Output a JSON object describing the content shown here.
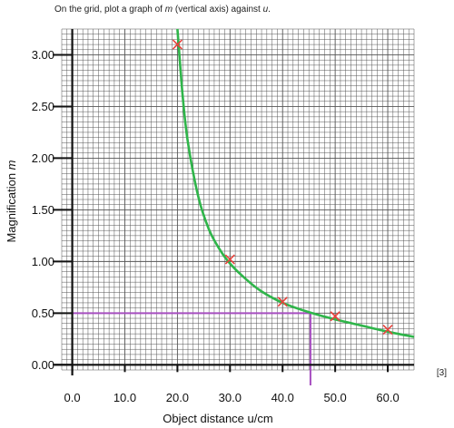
{
  "instruction": {
    "before": "On the grid, plot a graph of ",
    "var1": "m",
    "middle": " (vertical axis) against ",
    "var2": "u",
    "after": "."
  },
  "marks": "[3]",
  "chart_data": {
    "type": "scatter",
    "title": "",
    "xlabel": "Object distance u/cm",
    "ylabel_text": "Magnification ",
    "ylabel_var": "m",
    "xlim": [
      -2,
      65
    ],
    "ylim": [
      -0.05,
      3.25
    ],
    "x_ticks": [
      0,
      10,
      20,
      30,
      40,
      50,
      60
    ],
    "x_tick_labels": [
      "0.0",
      "10.0",
      "20.0",
      "30.0",
      "40.0",
      "50.0",
      "60.0"
    ],
    "y_ticks": [
      0,
      0.5,
      1.0,
      1.5,
      2.0,
      2.5,
      3.0
    ],
    "y_tick_labels": [
      "0.00",
      "0.50",
      "1.00",
      "1.50",
      "2.00",
      "2.50",
      "3.00"
    ],
    "grid": true,
    "points": {
      "x": [
        20,
        30,
        40,
        50,
        60
      ],
      "y": [
        3.1,
        1.02,
        0.61,
        0.47,
        0.34
      ],
      "marker": "x",
      "color": "#e8423c"
    },
    "curve": {
      "x": [
        20,
        21,
        22,
        24,
        26,
        28,
        30,
        33,
        36,
        40,
        45,
        50,
        55,
        60,
        65
      ],
      "y": [
        3.25,
        2.6,
        2.15,
        1.62,
        1.31,
        1.12,
        0.98,
        0.83,
        0.71,
        0.6,
        0.51,
        0.44,
        0.38,
        0.32,
        0.27
      ],
      "color": "#2fb54a"
    },
    "reading": {
      "x": 45.3,
      "y": 0.5,
      "color": "#a64ec0"
    },
    "grid_color": "#555555",
    "axis_color": "#111111"
  }
}
